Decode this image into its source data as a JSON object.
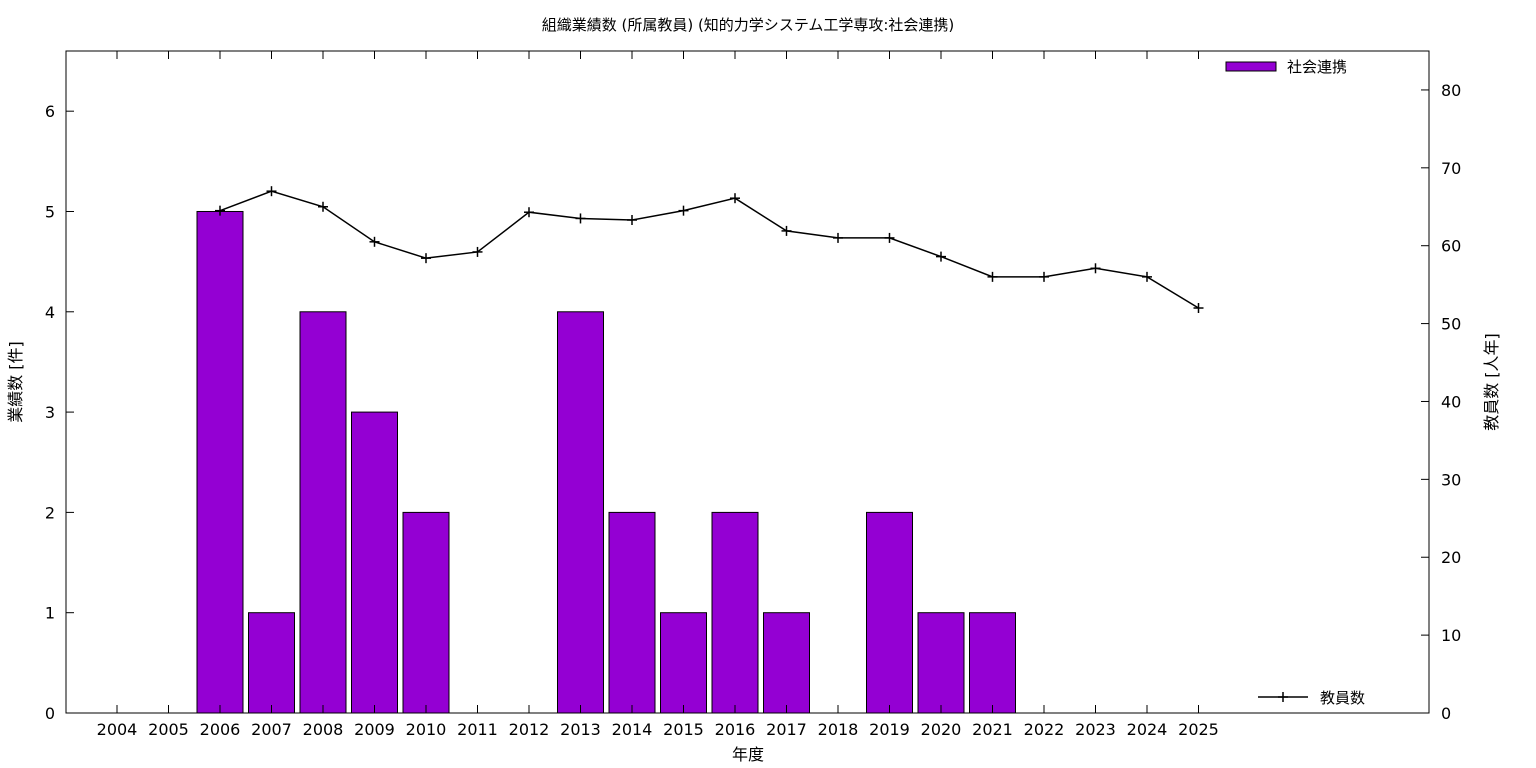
{
  "chart_data": {
    "type": "bar",
    "title": "組織業績数 (所属教員) (知的力学システム工学専攻:社会連携)",
    "xlabel": "年度",
    "ylabel": "業績数 [件]",
    "y2label": "教員数 [人年]",
    "categories": [
      "2004",
      "2005",
      "2006",
      "2007",
      "2008",
      "2009",
      "2010",
      "2011",
      "2012",
      "2013",
      "2014",
      "2015",
      "2016",
      "2017",
      "2018",
      "2019",
      "2020",
      "2021",
      "2022",
      "2023",
      "2024",
      "2025"
    ],
    "ylim": [
      0,
      6.6
    ],
    "y2lim": [
      0,
      85
    ],
    "yticks": [
      0,
      1,
      2,
      3,
      4,
      5,
      6
    ],
    "y2ticks": [
      0,
      10,
      20,
      30,
      40,
      50,
      60,
      70,
      80
    ],
    "grid": false,
    "series": [
      {
        "name": "社会連携",
        "kind": "bar",
        "axis": "left",
        "color": "#9400d3",
        "values": [
          0,
          0,
          5,
          1,
          4,
          3,
          2,
          0,
          0,
          4,
          2,
          1,
          2,
          1,
          0,
          2,
          1,
          1,
          0,
          0,
          0,
          null
        ]
      },
      {
        "name": "教員数",
        "kind": "line",
        "axis": "right",
        "color": "#000000",
        "values": [
          null,
          null,
          64.5,
          67.0,
          65.0,
          60.5,
          58.4,
          59.2,
          64.3,
          63.5,
          63.3,
          64.5,
          66.1,
          61.9,
          61.0,
          61.0,
          58.6,
          56.0,
          56.0,
          57.1,
          56.0,
          52.0
        ]
      }
    ],
    "legend": [
      {
        "label": "社会連携",
        "placement": "top-right"
      },
      {
        "label": "教員数",
        "placement": "bottom-right"
      }
    ]
  }
}
